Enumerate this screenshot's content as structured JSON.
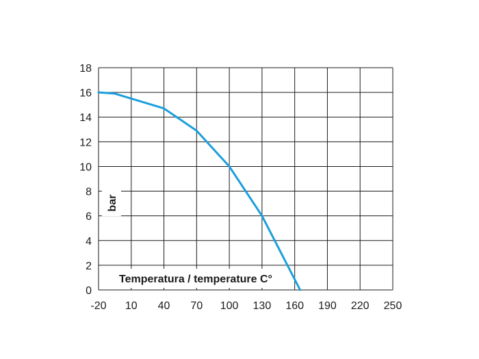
{
  "chart_data": {
    "type": "line",
    "title": "",
    "xlabel": "Temperatura / temperature C°",
    "ylabel": "bar",
    "x_ticks": [
      "-20",
      "10",
      "40",
      "70",
      "100",
      "130",
      "160",
      "190",
      "220",
      "250"
    ],
    "y_ticks": [
      "0",
      "2",
      "4",
      "6",
      "8",
      "10",
      "12",
      "14",
      "16",
      "18"
    ],
    "xlim": [
      -20,
      250
    ],
    "ylim": [
      0,
      18
    ],
    "grid": true,
    "series": [
      {
        "x": [
          -20,
          -5,
          40,
          55,
          70,
          100,
          130,
          165
        ],
        "y": [
          16,
          15.9,
          14.7,
          13.8,
          12.9,
          10,
          6,
          0
        ],
        "color": "#1a9fdc"
      }
    ]
  }
}
